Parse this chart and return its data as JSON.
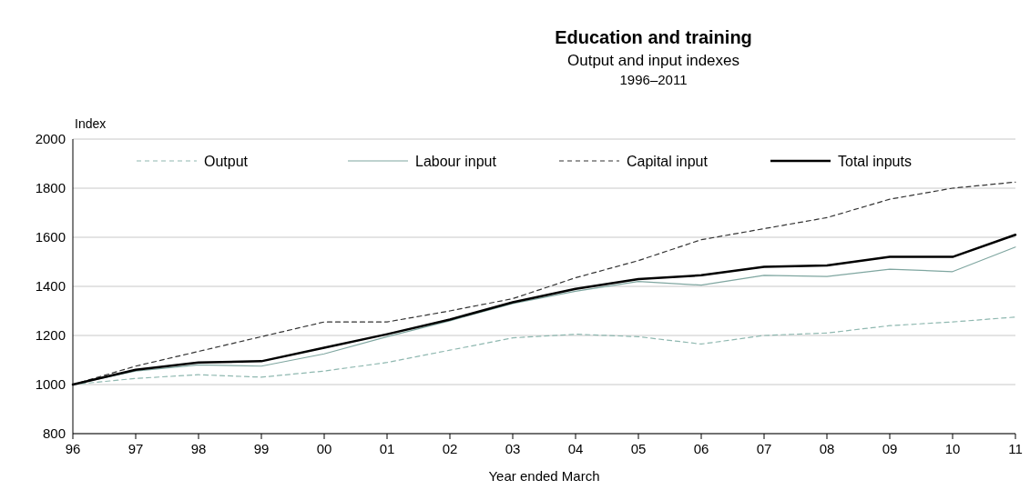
{
  "chart_data": {
    "type": "line",
    "title": "Education and training",
    "subtitle": "Output and input indexes\n1996–2011",
    "xlabel": "Year ended March",
    "ylabel": "Index",
    "categories": [
      "96",
      "97",
      "98",
      "99",
      "00",
      "01",
      "02",
      "03",
      "04",
      "05",
      "06",
      "07",
      "08",
      "09",
      "10",
      "11"
    ],
    "ylim": [
      800,
      2000
    ],
    "yticks": [
      800,
      1000,
      1200,
      1400,
      1600,
      1800,
      2000
    ],
    "grid": "y",
    "legend": "top",
    "series": [
      {
        "name": "Output",
        "color": "#8fb8b0",
        "line_style": "dashed",
        "values": [
          1000,
          1025,
          1040,
          1030,
          1055,
          1090,
          1140,
          1190,
          1205,
          1195,
          1165,
          1200,
          1210,
          1240,
          1255,
          1275
        ]
      },
      {
        "name": "Labour input",
        "color": "#7fa6a0",
        "line_style": "solid",
        "values": [
          1000,
          1055,
          1080,
          1075,
          1125,
          1195,
          1260,
          1330,
          1380,
          1420,
          1405,
          1445,
          1440,
          1470,
          1460,
          1560
        ]
      },
      {
        "name": "Capital input",
        "color": "#333333",
        "line_style": "dashed",
        "values": [
          1000,
          1075,
          1135,
          1195,
          1255,
          1255,
          1300,
          1350,
          1435,
          1505,
          1590,
          1635,
          1680,
          1755,
          1800,
          1825
        ]
      },
      {
        "name": "Total inputs",
        "color": "#000000",
        "line_style": "solid",
        "values": [
          1000,
          1060,
          1090,
          1095,
          1150,
          1205,
          1265,
          1335,
          1390,
          1430,
          1445,
          1480,
          1485,
          1520,
          1520,
          1610
        ]
      }
    ]
  }
}
